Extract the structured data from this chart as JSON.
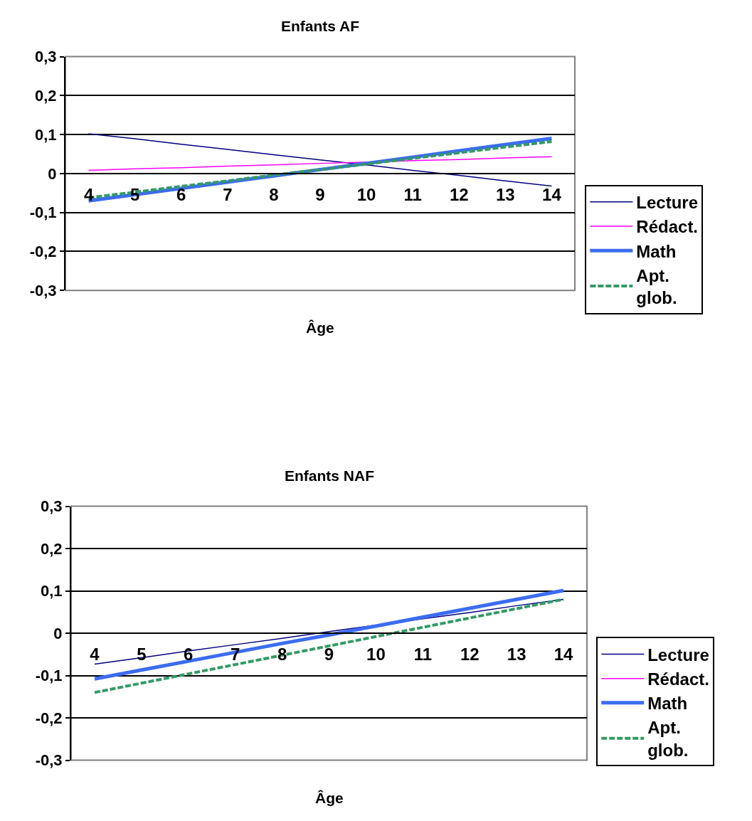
{
  "chart_data": [
    {
      "type": "line",
      "title": "Enfants AF",
      "xlabel": "Âge",
      "categories": [
        "4",
        "5",
        "6",
        "7",
        "8",
        "9",
        "10",
        "11",
        "12",
        "13",
        "14"
      ],
      "series": [
        {
          "name": "Lecture",
          "color": "#000080",
          "line_style": "solid",
          "values": [
            0.102,
            0.089,
            0.075,
            0.062,
            0.048,
            0.035,
            0.022,
            0.008,
            -0.005,
            -0.019,
            -0.032
          ]
        },
        {
          "name": "Rédact.",
          "color": "#ff00ff",
          "line_style": "solid",
          "values": [
            0.008,
            0.012,
            0.015,
            0.019,
            0.022,
            0.026,
            0.029,
            0.033,
            0.036,
            0.04,
            0.043
          ]
        },
        {
          "name": "Math",
          "color": "#3c6cf0",
          "line_style": "solid",
          "values": [
            -0.07,
            -0.054,
            -0.038,
            -0.022,
            -0.006,
            0.01,
            0.026,
            0.042,
            0.058,
            0.074,
            0.09
          ]
        },
        {
          "name": "Apt. glob.",
          "color": "#339966",
          "line_style": "dashed",
          "values": [
            -0.062,
            -0.048,
            -0.033,
            -0.019,
            -0.004,
            0.01,
            0.024,
            0.039,
            0.053,
            0.068,
            0.082
          ]
        }
      ],
      "ylim": [
        -0.3,
        0.3
      ],
      "yticks": [
        {
          "value": -0.3,
          "label": "-0,3"
        },
        {
          "value": -0.2,
          "label": "-0,2"
        },
        {
          "value": -0.1,
          "label": "-0,1"
        },
        0,
        {
          "value": 0.1,
          "label": "0,1"
        },
        {
          "value": 0.2,
          "label": "0,2"
        },
        {
          "value": 0.3,
          "label": "0,3"
        }
      ],
      "grid": "y",
      "legend": "right",
      "marker": "none"
    },
    {
      "type": "line",
      "title": "Enfants NAF",
      "xlabel": "Âge",
      "categories": [
        "4",
        "5",
        "6",
        "7",
        "8",
        "9",
        "10",
        "11",
        "12",
        "13",
        "14"
      ],
      "series": [
        {
          "name": "Lecture",
          "color": "#000080",
          "line_style": "solid",
          "values": [
            -0.073,
            -0.058,
            -0.042,
            -0.027,
            -0.012,
            0.004,
            0.019,
            0.034,
            0.049,
            0.065,
            0.08
          ]
        },
        {
          "name": "Rédact.",
          "color": "#ff00ff",
          "line_style": "solid",
          "values": [
            null,
            null,
            null,
            null,
            null,
            null,
            null,
            null,
            null,
            null,
            null
          ]
        },
        {
          "name": "Math",
          "color": "#3c6cf0",
          "line_style": "solid",
          "values": [
            -0.108,
            -0.087,
            -0.066,
            -0.045,
            -0.024,
            -0.004,
            0.017,
            0.038,
            0.059,
            0.08,
            0.101
          ]
        },
        {
          "name": "Apt. glob.",
          "color": "#339966",
          "line_style": "dashed",
          "values": [
            -0.14,
            -0.118,
            -0.096,
            -0.074,
            -0.052,
            -0.03,
            -0.008,
            0.014,
            0.036,
            0.058,
            0.08
          ]
        }
      ],
      "ylim": [
        -0.3,
        0.3
      ],
      "yticks": [
        {
          "value": -0.3,
          "label": "-0,3"
        },
        {
          "value": -0.2,
          "label": "-0,2"
        },
        {
          "value": -0.1,
          "label": "-0,1"
        },
        0,
        {
          "value": 0.1,
          "label": "0,1"
        },
        {
          "value": 0.2,
          "label": "0,2"
        },
        {
          "value": 0.3,
          "label": "0,3"
        }
      ],
      "grid": "y",
      "legend": "right",
      "marker": "none"
    }
  ]
}
